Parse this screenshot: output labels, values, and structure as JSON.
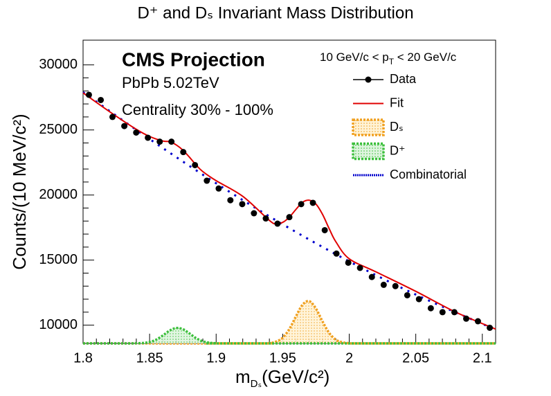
{
  "chart_data": {
    "type": "line",
    "title": "D⁺ and Dₛ Invariant Mass Distribution",
    "xlabel": [
      "m",
      "Dₛ",
      "(GeV/c²)"
    ],
    "ylabel": "Counts/(10 MeV/c²)",
    "annotations": {
      "experiment": "CMS Projection",
      "system": "PbPb 5.02TeV",
      "centrality": "Centrality 30% - 100%",
      "pt_range": [
        "10 GeV/c < p",
        "T",
        " < 20 GeV/c"
      ]
    },
    "xlim": [
      1.8,
      2.11
    ],
    "ylim": [
      8600,
      31900
    ],
    "xticks": [
      1.8,
      1.85,
      1.9,
      1.95,
      2,
      2.05,
      2.1
    ],
    "yticks": [
      10000,
      15000,
      20000,
      25000,
      30000
    ],
    "series": [
      {
        "name": "Data",
        "color": "#000000",
        "style": "markers",
        "x": [
          1.8044,
          1.8133,
          1.8221,
          1.831,
          1.8399,
          1.8487,
          1.8576,
          1.8664,
          1.8753,
          1.8841,
          1.893,
          1.9019,
          1.9107,
          1.9196,
          1.9284,
          1.9373,
          1.9461,
          1.955,
          1.9639,
          1.9727,
          1.9816,
          1.9904,
          1.9993,
          2.0081,
          2.017,
          2.0259,
          2.0347,
          2.0436,
          2.0524,
          2.0613,
          2.0701,
          2.079,
          2.0879,
          2.0967,
          2.1056
        ],
        "values": [
          27700,
          27300,
          26000,
          25300,
          24800,
          24400,
          24100,
          24100,
          23300,
          22300,
          21100,
          20500,
          19600,
          19300,
          18600,
          18200,
          17800,
          18300,
          19300,
          19400,
          17300,
          15500,
          14800,
          14400,
          13700,
          13100,
          13000,
          12300,
          12000,
          11300,
          11000,
          11000,
          10500,
          10300,
          9800
        ]
      },
      {
        "name": "Fit",
        "color": "#e00000",
        "style": "line",
        "x": [
          1.8,
          1.82,
          1.84,
          1.85,
          1.86,
          1.865,
          1.87,
          1.875,
          1.88,
          1.885,
          1.89,
          1.9,
          1.92,
          1.94,
          1.945,
          1.95,
          1.955,
          1.96,
          1.965,
          1.97,
          1.975,
          1.98,
          1.985,
          1.99,
          2.0,
          2.02,
          2.05,
          2.08,
          2.11
        ],
        "values": [
          27850,
          26400,
          25050,
          24500,
          24150,
          24100,
          23850,
          23450,
          22900,
          22300,
          21800,
          21100,
          19900,
          18050,
          17800,
          17900,
          18300,
          18900,
          19450,
          19600,
          19300,
          18500,
          17400,
          16400,
          15100,
          14100,
          12600,
          11000,
          9700
        ]
      },
      {
        "name": "Dₛ",
        "color": "#f0a020",
        "style": "area",
        "x": [
          1.8,
          1.93,
          1.94,
          1.945,
          1.95,
          1.955,
          1.96,
          1.965,
          1.97,
          1.975,
          1.98,
          1.985,
          1.99,
          1.995,
          2.0,
          2.01,
          2.11
        ],
        "values": [
          8600,
          8600,
          8630,
          8730,
          9040,
          9700,
          10680,
          11580,
          11840,
          11270,
          10270,
          9390,
          8880,
          8680,
          8620,
          8600,
          8600
        ]
      },
      {
        "name": "D⁺",
        "color": "#3cbf3c",
        "style": "area",
        "x": [
          1.8,
          1.835,
          1.84,
          1.845,
          1.85,
          1.855,
          1.86,
          1.865,
          1.87,
          1.875,
          1.88,
          1.885,
          1.89,
          1.895,
          1.9,
          1.91,
          2.11
        ],
        "values": [
          8600,
          8600,
          8610,
          8630,
          8700,
          8890,
          9210,
          9580,
          9780,
          9690,
          9360,
          9000,
          8760,
          8650,
          8610,
          8600,
          8600
        ]
      },
      {
        "name": "Combinatorial",
        "color": "#0000cc",
        "style": "dotted",
        "x": [
          1.8,
          1.85,
          1.9,
          1.95,
          2.0,
          2.05,
          2.1,
          2.11
        ],
        "values": [
          27900,
          24300,
          20900,
          17750,
          14900,
          12350,
          10100,
          9700
        ]
      }
    ]
  }
}
